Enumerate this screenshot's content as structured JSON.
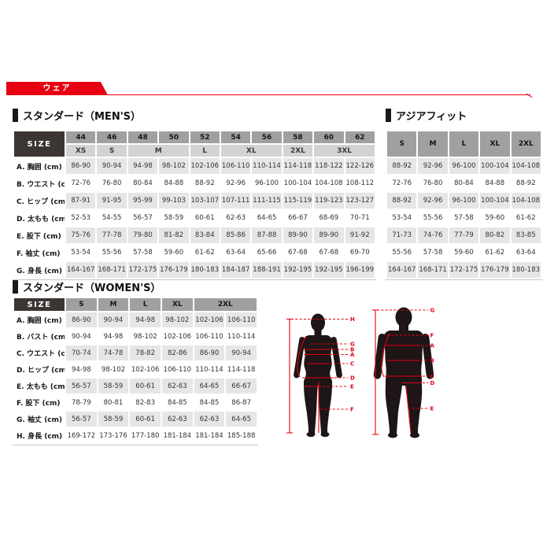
{
  "banner": {
    "label": "ウェア",
    "accent_color": "#e60012"
  },
  "colors": {
    "accent_red": "#e60012",
    "header_dark": "#3b3534",
    "size_cell_gray": "#9fa0a0",
    "letter_cell_gray": "#d3d3d4",
    "row_alt_gray": "#e6e6e7"
  },
  "chart_data": [
    {
      "type": "table",
      "title": "スタンダード（MEN'S）",
      "corner_label": "SIZE",
      "numeric_sizes": [
        "44",
        "46",
        "48",
        "50",
        "52",
        "54",
        "56",
        "58",
        "60",
        "62"
      ],
      "letter_sizes": [
        {
          "label": "XS",
          "span": 1
        },
        {
          "label": "S",
          "span": 1
        },
        {
          "label": "M",
          "span": 2
        },
        {
          "label": "L",
          "span": 1
        },
        {
          "label": "XL",
          "span": 2
        },
        {
          "label": "2XL",
          "span": 1
        },
        {
          "label": "3XL",
          "span": 2
        }
      ],
      "rows": [
        {
          "label": "A. 胸囲 (cm)",
          "values": [
            "86-90",
            "90-94",
            "94-98",
            "98-102",
            "102-106",
            "106-110",
            "110-114",
            "114-118",
            "118-122",
            "122-126"
          ]
        },
        {
          "label": "B. ウエスト (cm)",
          "values": [
            "72-76",
            "76-80",
            "80-84",
            "84-88",
            "88-92",
            "92-96",
            "96-100",
            "100-104",
            "104-108",
            "108-112"
          ]
        },
        {
          "label": "C. ヒップ (cm)",
          "values": [
            "87-91",
            "91-95",
            "95-99",
            "99-103",
            "103-107",
            "107-111",
            "111-115",
            "115-119",
            "119-123",
            "123-127"
          ]
        },
        {
          "label": "D. 太もも (cm)",
          "values": [
            "52-53",
            "54-55",
            "56-57",
            "58-59",
            "60-61",
            "62-63",
            "64-65",
            "66-67",
            "68-69",
            "70-71"
          ]
        },
        {
          "label": "E. 股下 (cm)",
          "values": [
            "75-76",
            "77-78",
            "79-80",
            "81-82",
            "83-84",
            "85-86",
            "87-88",
            "89-90",
            "89-90",
            "91-92"
          ]
        },
        {
          "label": "F. 袖丈 (cm)",
          "values": [
            "53-54",
            "55-56",
            "57-58",
            "59-60",
            "61-62",
            "63-64",
            "65-66",
            "67-68",
            "67-68",
            "69-70"
          ]
        },
        {
          "label": "G. 身長 (cm)",
          "values": [
            "164-167",
            "168-171",
            "172-175",
            "176-179",
            "180-183",
            "184-187",
            "188-191",
            "192-195",
            "192-195",
            "196-199"
          ]
        }
      ]
    },
    {
      "type": "table",
      "title": "アジアフィット",
      "sizes": [
        "S",
        "M",
        "L",
        "XL",
        "2XL"
      ],
      "rows": [
        {
          "values": [
            "88-92",
            "92-96",
            "96-100",
            "100-104",
            "104-108"
          ]
        },
        {
          "values": [
            "72-76",
            "76-80",
            "80-84",
            "84-88",
            "88-92"
          ]
        },
        {
          "values": [
            "88-92",
            "92-96",
            "96-100",
            "100-104",
            "104-108"
          ]
        },
        {
          "values": [
            "53-54",
            "55-56",
            "57-58",
            "59-60",
            "61-62"
          ]
        },
        {
          "values": [
            "71-73",
            "74-76",
            "77-79",
            "80-82",
            "83-85"
          ]
        },
        {
          "values": [
            "55-56",
            "57-58",
            "59-60",
            "61-62",
            "63-64"
          ]
        },
        {
          "values": [
            "164-167",
            "168-171",
            "172-175",
            "176-179",
            "180-183"
          ]
        }
      ]
    },
    {
      "type": "table",
      "title": "スタンダード（WOMEN'S）",
      "corner_label": "SIZE",
      "letter_sizes": [
        {
          "label": "S",
          "span": 1
        },
        {
          "label": "M",
          "span": 1
        },
        {
          "label": "L",
          "span": 1
        },
        {
          "label": "XL",
          "span": 1
        },
        {
          "label": "2XL",
          "span": 2
        }
      ],
      "rows": [
        {
          "label": "A. 胸囲 (cm)",
          "values": [
            "86-90",
            "90-94",
            "94-98",
            "98-102",
            "102-106",
            "106-110"
          ]
        },
        {
          "label": "B. バスト (cm)",
          "values": [
            "90-94",
            "94-98",
            "98-102",
            "102-106",
            "106-110",
            "110-114"
          ]
        },
        {
          "label": "C. ウエスト (cm)",
          "values": [
            "70-74",
            "74-78",
            "78-82",
            "82-86",
            "86-90",
            "90-94"
          ]
        },
        {
          "label": "D. ヒップ (cm)",
          "values": [
            "94-98",
            "98-102",
            "102-106",
            "106-110",
            "110-114",
            "114-118"
          ]
        },
        {
          "label": "E. 太もも (cm)",
          "values": [
            "56-57",
            "58-59",
            "60-61",
            "62-63",
            "64-65",
            "66-67"
          ]
        },
        {
          "label": "F. 股下 (cm)",
          "values": [
            "78-79",
            "80-81",
            "82-83",
            "84-85",
            "84-85",
            "86-87"
          ]
        },
        {
          "label": "G. 袖丈 (cm)",
          "values": [
            "56-57",
            "58-59",
            "60-61",
            "62-63",
            "62-63",
            "64-65"
          ]
        },
        {
          "label": "H. 身長 (cm)",
          "values": [
            "169-172",
            "173-176",
            "177-180",
            "181-184",
            "181-184",
            "185-188"
          ]
        }
      ]
    }
  ],
  "diagram": {
    "female": {
      "labels": [
        "H",
        "G",
        "B",
        "A",
        "C",
        "D",
        "E",
        "F"
      ]
    },
    "male": {
      "labels": [
        "G",
        "F",
        "A",
        "B",
        "C",
        "D",
        "E"
      ]
    }
  }
}
